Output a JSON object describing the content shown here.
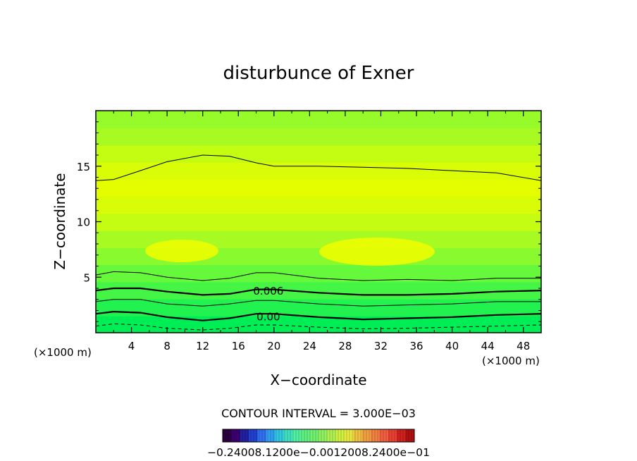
{
  "chart_data": {
    "type": "contour",
    "title": "disturbunce of Exner",
    "xlabel": "X−coordinate",
    "ylabel": "Z−coordinate",
    "x_unit_left": "(×1000 m)",
    "x_unit_right": "(×1000 m)",
    "xlim": [
      0,
      50
    ],
    "ylim": [
      0,
      20
    ],
    "x_ticks": [
      "4",
      "8",
      "12",
      "16",
      "20",
      "24",
      "28",
      "32",
      "36",
      "40",
      "44",
      "48"
    ],
    "y_ticks": [
      "5",
      "10",
      "15"
    ],
    "contour_interval_text": "CONTOUR INTERVAL = 3.000E−03",
    "contour_labels": [
      {
        "text": "0.006",
        "x": 17,
        "z": 3.8
      },
      {
        "text": "0.00",
        "x": 17,
        "z": 1.5
      }
    ],
    "contour_lines": [
      {
        "style": "thin",
        "x": [
          0,
          2,
          5,
          8,
          12,
          15,
          18,
          20,
          25,
          30,
          35,
          40,
          45,
          50
        ],
        "z": [
          13.7,
          13.8,
          14.6,
          15.4,
          16.0,
          15.9,
          15.3,
          15.0,
          15.0,
          14.9,
          14.8,
          14.6,
          14.4,
          13.7
        ]
      },
      {
        "style": "thin",
        "x": [
          0,
          2,
          5,
          8,
          12,
          15,
          18,
          20,
          25,
          30,
          35,
          40,
          45,
          50
        ],
        "z": [
          5.2,
          5.5,
          5.4,
          5.0,
          4.7,
          4.9,
          5.4,
          5.4,
          4.9,
          4.7,
          4.8,
          4.7,
          4.9,
          4.9
        ]
      },
      {
        "style": "thick",
        "x": [
          0,
          2,
          5,
          8,
          12,
          15,
          18,
          20,
          25,
          30,
          35,
          40,
          45,
          50
        ],
        "z": [
          3.8,
          4.0,
          4.0,
          3.7,
          3.4,
          3.5,
          3.9,
          3.9,
          3.6,
          3.4,
          3.4,
          3.5,
          3.7,
          3.8
        ]
      },
      {
        "style": "thin",
        "x": [
          0,
          2,
          5,
          8,
          12,
          15,
          18,
          20,
          25,
          30,
          35,
          40,
          45,
          50
        ],
        "z": [
          2.8,
          3.0,
          3.0,
          2.6,
          2.4,
          2.6,
          2.9,
          2.9,
          2.6,
          2.4,
          2.5,
          2.6,
          2.8,
          2.8
        ]
      },
      {
        "style": "thick",
        "x": [
          0,
          2,
          5,
          8,
          12,
          15,
          18,
          20,
          25,
          30,
          35,
          40,
          45,
          50
        ],
        "z": [
          1.7,
          1.9,
          1.8,
          1.4,
          1.1,
          1.3,
          1.7,
          1.7,
          1.4,
          1.2,
          1.3,
          1.4,
          1.6,
          1.7
        ]
      },
      {
        "style": "dashed",
        "x": [
          0,
          2,
          5,
          8,
          12,
          15,
          18,
          20,
          25,
          30,
          35,
          40,
          45,
          50
        ],
        "z": [
          0.6,
          0.8,
          0.7,
          0.4,
          0.25,
          0.4,
          0.7,
          0.7,
          0.5,
          0.35,
          0.4,
          0.5,
          0.6,
          0.7
        ]
      }
    ],
    "color_bands_bottom_to_top": [
      "#00ee55",
      "#22f250",
      "#44f545",
      "#66f83a",
      "#88fa2e",
      "#a8fb22",
      "#c4fc12",
      "#d8fd06",
      "#e4fe00",
      "#d8fd06",
      "#c4fc12",
      "#a8fb22",
      "#96fb28"
    ],
    "colorbar": {
      "labels_text": "−0.24000e−01−0.120000e−01 0.000000 0.120000e−01 0.240000e−01",
      "labels_render": "−0.24008.1200e−0.0012008.2400e−01",
      "colors": [
        "#2a0040",
        "#3a0070",
        "#2020a0",
        "#2040d0",
        "#3070f0",
        "#30a0f0",
        "#30c8e0",
        "#40e0c0",
        "#50f0a0",
        "#60f080",
        "#70f070",
        "#90f060",
        "#b0f050",
        "#d0f040",
        "#e8e840",
        "#f0c040",
        "#f0a040",
        "#f08040",
        "#f06040",
        "#e84030",
        "#d02020",
        "#b01010"
      ]
    }
  }
}
